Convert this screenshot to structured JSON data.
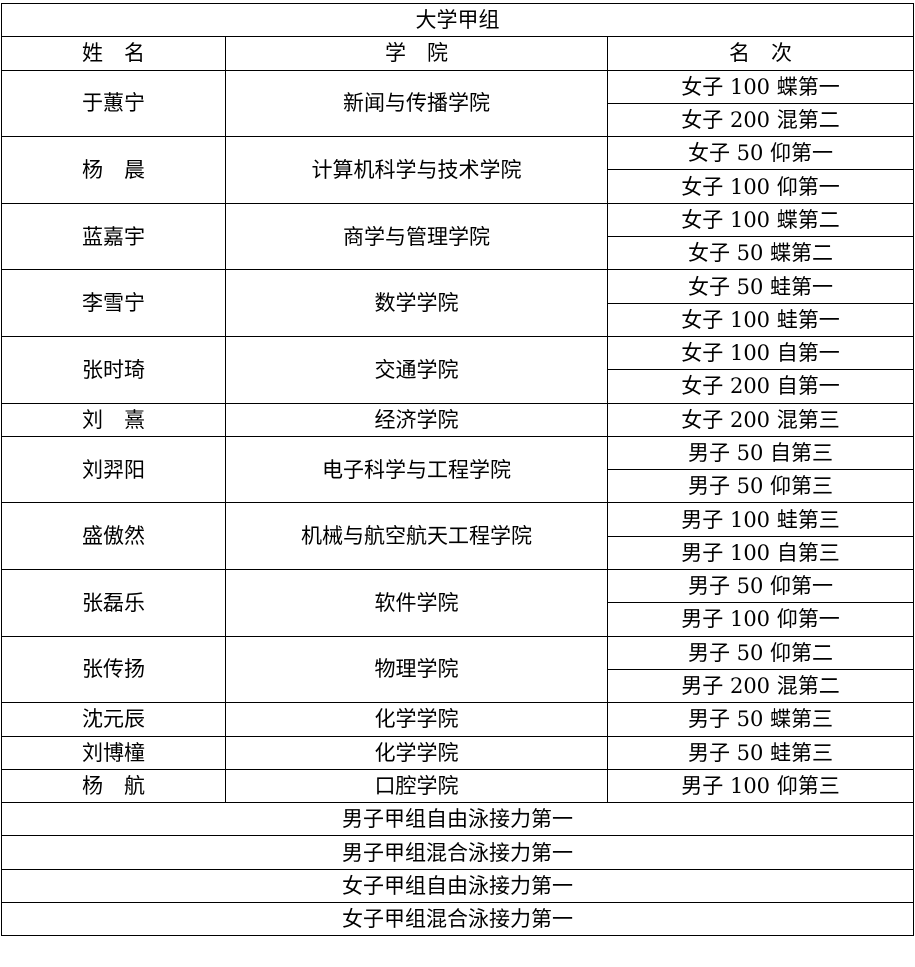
{
  "title": "大学甲组",
  "headers": {
    "name": "姓　名",
    "college": "学　院",
    "rank": "名　次"
  },
  "entries": [
    {
      "name": "于蕙宁",
      "college": "新闻与传播学院",
      "results": [
        "女子 100 蝶第一",
        "女子 200 混第二"
      ]
    },
    {
      "name": "杨　晨",
      "college": "计算机科学与技术学院",
      "results": [
        "女子 50 仰第一",
        "女子 100 仰第一"
      ]
    },
    {
      "name": "蓝嘉宇",
      "college": "商学与管理学院",
      "results": [
        "女子 100 蝶第二",
        "女子 50 蝶第二"
      ]
    },
    {
      "name": "李雪宁",
      "college": "数学学院",
      "results": [
        "女子 50 蛙第一",
        "女子 100 蛙第一"
      ]
    },
    {
      "name": "张时琦",
      "college": "交通学院",
      "results": [
        "女子 100 自第一",
        "女子 200 自第一"
      ]
    },
    {
      "name": "刘　熹",
      "college": "经济学院",
      "results": [
        "女子 200 混第三"
      ]
    },
    {
      "name": "刘羿阳",
      "college": "电子科学与工程学院",
      "results": [
        "男子 50 自第三",
        "男子 50 仰第三"
      ]
    },
    {
      "name": "盛傲然",
      "college": "机械与航空航天工程学院",
      "results": [
        "男子 100 蛙第三",
        "男子 100 自第三"
      ]
    },
    {
      "name": "张磊乐",
      "college": "软件学院",
      "results": [
        "男子 50 仰第一",
        "男子 100 仰第一"
      ]
    },
    {
      "name": "张传扬",
      "college": "物理学院",
      "results": [
        "男子 50 仰第二",
        "男子 200 混第二"
      ]
    },
    {
      "name": "沈元辰",
      "college": "化学学院",
      "results": [
        "男子 50 蝶第三"
      ]
    },
    {
      "name": "刘博橦",
      "college": "化学学院",
      "results": [
        "男子 50 蛙第三"
      ]
    },
    {
      "name": "杨　航",
      "college": "口腔学院",
      "results": [
        "男子 100 仰第三"
      ]
    }
  ],
  "relays": [
    "男子甲组自由泳接力第一",
    "男子甲组混合泳接力第一",
    "女子甲组自由泳接力第一",
    "女子甲组混合泳接力第一"
  ]
}
